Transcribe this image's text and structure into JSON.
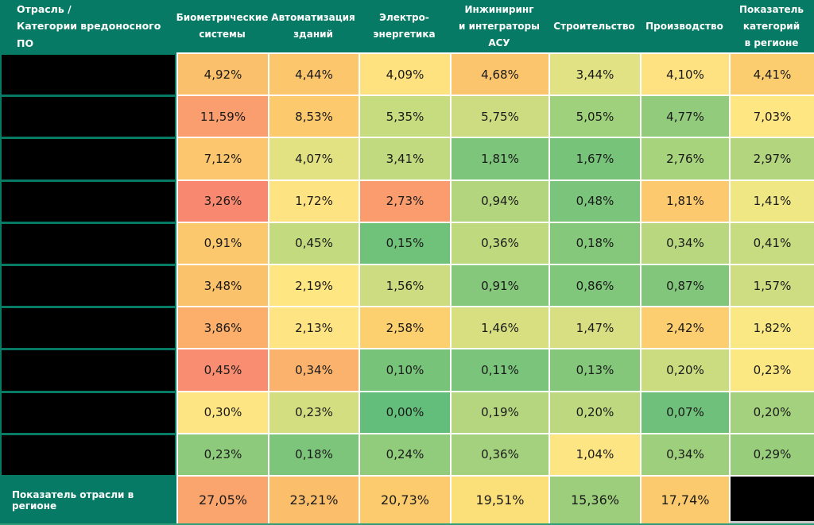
{
  "colors": {
    "teal": "#067A64",
    "gridline": "#FFFFFF",
    "redaction": "#000000",
    "header_text": "#FFFFFF",
    "value_text": "#1A1A1A",
    "bottom_edge": "#2E9D77"
  },
  "header": {
    "corner": "Отрасль /\nКатегории вредоносного ПО",
    "columns": [
      "Биометрические\nсистемы",
      "Автоматизация\nзданий",
      "Электро-\nэнергетика",
      "Инжиниринг\nи интеграторы\nАСУ",
      "Строительство",
      "Производство",
      "Показатель\nкатегорий\nв регионе"
    ]
  },
  "rows": [
    {
      "label_redacted": true,
      "values": [
        "4,92%",
        "4,44%",
        "4,09%",
        "4,68%",
        "3,44%",
        "4,10%",
        "4,41%"
      ],
      "colors": [
        "#FBC06B",
        "#FCC66D",
        "#FEE280",
        "#FBC56D",
        "#E1E283",
        "#FEE181",
        "#FCCD6F"
      ]
    },
    {
      "label_redacted": true,
      "values": [
        "11,59%",
        "8,53%",
        "5,35%",
        "5,75%",
        "5,05%",
        "4,77%",
        "7,03%"
      ],
      "colors": [
        "#FA9E6F",
        "#FCC96D",
        "#C7DB7F",
        "#CDDC80",
        "#9FD07C",
        "#92CB7B",
        "#FEE683"
      ]
    },
    {
      "label_redacted": true,
      "values": [
        "7,12%",
        "4,07%",
        "3,41%",
        "1,81%",
        "1,67%",
        "2,76%",
        "2,97%"
      ],
      "colors": [
        "#FBC66D",
        "#E3E283",
        "#C2DA7F",
        "#7CC57B",
        "#77C37A",
        "#A8D37D",
        "#B2D57E"
      ]
    },
    {
      "label_redacted": true,
      "values": [
        "3,26%",
        "1,72%",
        "2,73%",
        "0,94%",
        "0,48%",
        "1,81%",
        "1,41%"
      ],
      "colors": [
        "#F98870",
        "#FEE382",
        "#FA9C6E",
        "#B3D57E",
        "#7AC47B",
        "#FCC96E",
        "#EFE684"
      ]
    },
    {
      "label_redacted": true,
      "values": [
        "0,91%",
        "0,45%",
        "0,15%",
        "0,36%",
        "0,18%",
        "0,34%",
        "0,41%"
      ],
      "colors": [
        "#FBC86D",
        "#C3DA7F",
        "#70C17A",
        "#BFD97F",
        "#85C77B",
        "#B8D77E",
        "#C7DB80"
      ]
    },
    {
      "label_redacted": true,
      "values": [
        "3,48%",
        "2,19%",
        "1,56%",
        "0,91%",
        "0,86%",
        "0,87%",
        "1,57%"
      ],
      "colors": [
        "#FBC26C",
        "#FEE782",
        "#CDDC80",
        "#85C77B",
        "#80C67B",
        "#82C67B",
        "#CEDD81"
      ]
    },
    {
      "label_redacted": true,
      "values": [
        "3,86%",
        "2,13%",
        "2,58%",
        "1,46%",
        "1,47%",
        "2,42%",
        "1,82%"
      ],
      "colors": [
        "#FBAF6B",
        "#FEE482",
        "#FCCF6F",
        "#D7DF81",
        "#D8DF82",
        "#FCCE6F",
        "#F9E883"
      ]
    },
    {
      "label_redacted": true,
      "values": [
        "0,45%",
        "0,34%",
        "0,10%",
        "0,11%",
        "0,13%",
        "0,20%",
        "0,23%"
      ],
      "colors": [
        "#F98D71",
        "#FBB26C",
        "#78C37A",
        "#7BC47B",
        "#84C77B",
        "#CBDC80",
        "#FBE883"
      ]
    },
    {
      "label_redacted": true,
      "values": [
        "0,30%",
        "0,23%",
        "0,00%",
        "0,19%",
        "0,20%",
        "0,07%",
        "0,20%"
      ],
      "colors": [
        "#FEE583",
        "#D3DE81",
        "#63BE7B",
        "#B5D67E",
        "#BDD87F",
        "#6EC07A",
        "#A4D17D"
      ]
    },
    {
      "label_redacted": true,
      "values": [
        "0,23%",
        "0,18%",
        "0,24%",
        "0,36%",
        "1,04%",
        "0,34%",
        "0,29%"
      ],
      "colors": [
        "#8ECA7C",
        "#7DC57B",
        "#91CB7C",
        "#A3D17D",
        "#FEE583",
        "#9ECF7C",
        "#98CD7C"
      ]
    }
  ],
  "footer": {
    "label": "Показатель отрасли в регионе",
    "values": [
      "27,05%",
      "23,21%",
      "20,73%",
      "19,51%",
      "15,36%",
      "17,74%"
    ],
    "colors": [
      "#FAA56E",
      "#FBBE6B",
      "#FBCB6E",
      "#FBE07A",
      "#9CCE7C",
      "#FCCA6E"
    ],
    "last_cell_redacted": true
  },
  "chart_data": {
    "type": "heatmap",
    "title": "Отрасль / Категории вредоносного ПО",
    "columns": [
      "Биометрические системы",
      "Автоматизация зданий",
      "Электро-энергетика",
      "Инжиниринг и интеграторы АСУ",
      "Строительство",
      "Производство",
      "Показатель категорий в регионе"
    ],
    "row_labels": [
      "[redacted]",
      "[redacted]",
      "[redacted]",
      "[redacted]",
      "[redacted]",
      "[redacted]",
      "[redacted]",
      "[redacted]",
      "[redacted]",
      "[redacted]"
    ],
    "values_percent": [
      [
        4.92,
        4.44,
        4.09,
        4.68,
        3.44,
        4.1,
        4.41
      ],
      [
        11.59,
        8.53,
        5.35,
        5.75,
        5.05,
        4.77,
        7.03
      ],
      [
        7.12,
        4.07,
        3.41,
        1.81,
        1.67,
        2.76,
        2.97
      ],
      [
        3.26,
        1.72,
        2.73,
        0.94,
        0.48,
        1.81,
        1.41
      ],
      [
        0.91,
        0.45,
        0.15,
        0.36,
        0.18,
        0.34,
        0.41
      ],
      [
        3.48,
        2.19,
        1.56,
        0.91,
        0.86,
        0.87,
        1.57
      ],
      [
        3.86,
        2.13,
        2.58,
        1.46,
        1.47,
        2.42,
        1.82
      ],
      [
        0.45,
        0.34,
        0.1,
        0.11,
        0.13,
        0.2,
        0.23
      ],
      [
        0.3,
        0.23,
        0.0,
        0.19,
        0.2,
        0.07,
        0.2
      ],
      [
        0.23,
        0.18,
        0.24,
        0.36,
        1.04,
        0.34,
        0.29
      ]
    ],
    "footer_label": "Показатель отрасли в регионе",
    "footer_values_percent": [
      27.05,
      23.21,
      20.73,
      19.51,
      15.36,
      17.74,
      null
    ],
    "colorscale": "3-color red-yellow-green heatmap (higher = red/orange, lower = green)",
    "decimal_separator": ",",
    "grid": "white 2px gridlines between value cells; teal separators in label column",
    "legend": "none"
  }
}
